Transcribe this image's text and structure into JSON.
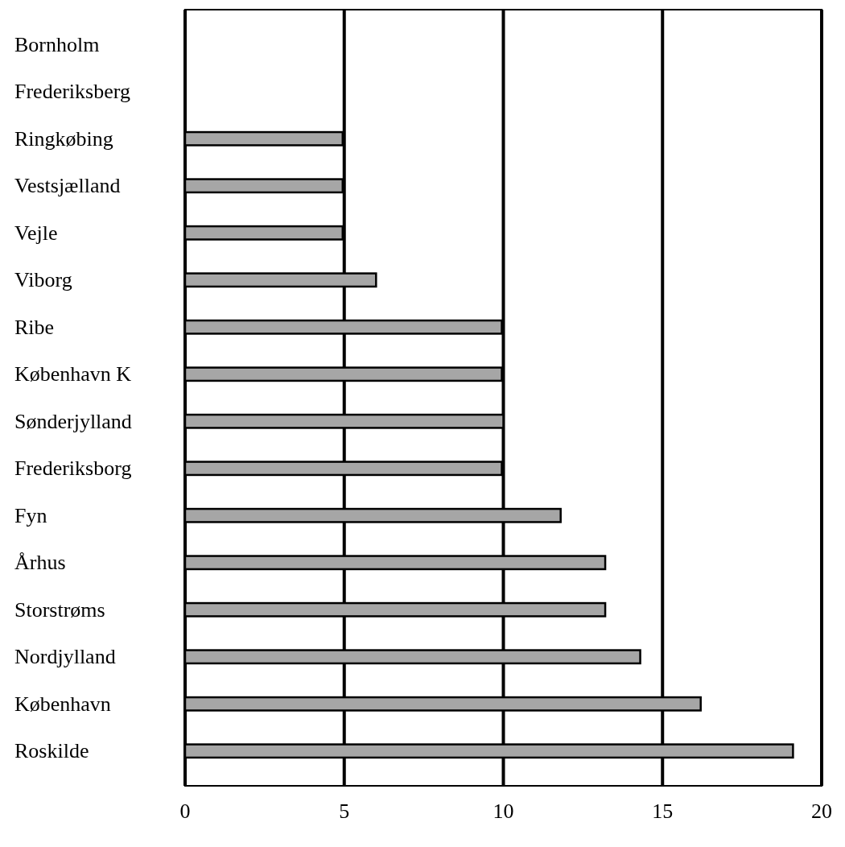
{
  "chart_data": {
    "type": "bar",
    "orientation": "horizontal",
    "categories": [
      "Bornholm",
      "Frederiksberg",
      "Ringkøbing",
      "Vestsjælland",
      "Vejle",
      "Viborg",
      "Ribe",
      "København K",
      "Sønderjylland",
      "Frederiksborg",
      "Fyn",
      "Århus",
      "Storstrøms",
      "Nordjylland",
      "København",
      "Roskilde"
    ],
    "values": [
      0,
      0,
      4.95,
      4.95,
      4.95,
      6.0,
      9.95,
      9.95,
      10,
      9.95,
      11.8,
      13.2,
      13.2,
      14.3,
      16.2,
      19.1
    ],
    "color": "#a6a6a6",
    "xlim": [
      0,
      20
    ],
    "xticks": [
      0,
      5,
      10,
      15,
      20
    ],
    "grid": "x"
  }
}
